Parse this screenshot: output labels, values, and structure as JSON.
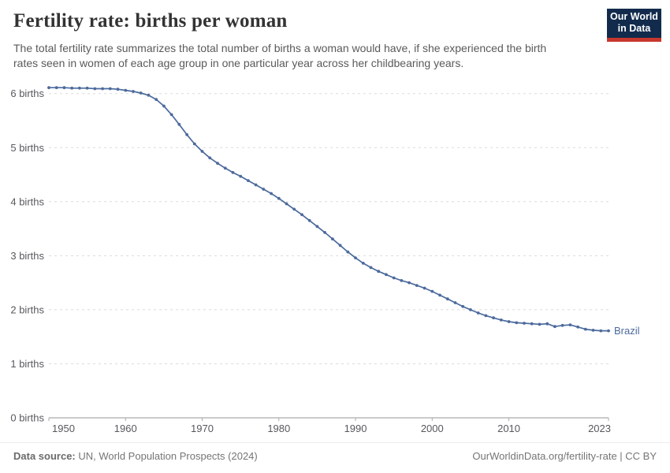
{
  "header": {
    "title": "Fertility rate: births per woman",
    "subtitle_line1": "The total fertility rate summarizes the total number of births a woman would have, if she experienced the birth",
    "subtitle_line2": "rates seen in women of each age group in one particular year across her childbearing years."
  },
  "logo": {
    "line1": "Our World",
    "line2": "in Data",
    "bg_color": "#122B4D",
    "accent_color": "#C8372D",
    "text_color": "#FFFFFF"
  },
  "chart_data": {
    "type": "line",
    "title": "Fertility rate: births per woman",
    "x": [
      1950,
      1951,
      1952,
      1953,
      1954,
      1955,
      1956,
      1957,
      1958,
      1959,
      1960,
      1961,
      1962,
      1963,
      1964,
      1965,
      1966,
      1967,
      1968,
      1969,
      1970,
      1971,
      1972,
      1973,
      1974,
      1975,
      1976,
      1977,
      1978,
      1979,
      1980,
      1981,
      1982,
      1983,
      1984,
      1985,
      1986,
      1987,
      1988,
      1989,
      1990,
      1991,
      1992,
      1993,
      1994,
      1995,
      1996,
      1997,
      1998,
      1999,
      2000,
      2001,
      2002,
      2003,
      2004,
      2005,
      2006,
      2007,
      2008,
      2009,
      2010,
      2011,
      2012,
      2013,
      2014,
      2015,
      2016,
      2017,
      2018,
      2019,
      2020,
      2021,
      2022,
      2023
    ],
    "series": [
      {
        "name": "Brazil",
        "color": "#4C6A9C",
        "values": [
          6.11,
          6.11,
          6.11,
          6.1,
          6.1,
          6.1,
          6.09,
          6.09,
          6.09,
          6.08,
          6.06,
          6.04,
          6.01,
          5.97,
          5.89,
          5.77,
          5.61,
          5.43,
          5.24,
          5.07,
          4.93,
          4.81,
          4.71,
          4.62,
          4.54,
          4.47,
          4.39,
          4.31,
          4.23,
          4.15,
          4.06,
          3.96,
          3.86,
          3.76,
          3.65,
          3.54,
          3.43,
          3.31,
          3.19,
          3.07,
          2.96,
          2.86,
          2.78,
          2.71,
          2.65,
          2.59,
          2.54,
          2.5,
          2.45,
          2.4,
          2.34,
          2.27,
          2.2,
          2.13,
          2.06,
          2.0,
          1.94,
          1.89,
          1.85,
          1.81,
          1.78,
          1.76,
          1.75,
          1.74,
          1.73,
          1.74,
          1.69,
          1.71,
          1.72,
          1.68,
          1.64,
          1.62,
          1.61,
          1.61
        ]
      }
    ],
    "xlabel": "",
    "ylabel": "births",
    "xlim": [
      1950,
      2023
    ],
    "ylim": [
      0,
      6.3
    ],
    "x_ticks": [
      1950,
      1960,
      1970,
      1980,
      1990,
      2000,
      2010,
      2023
    ],
    "y_ticks": [
      {
        "value": 0,
        "label": "0 births"
      },
      {
        "value": 1,
        "label": "1 births"
      },
      {
        "value": 2,
        "label": "2 births"
      },
      {
        "value": 3,
        "label": "3 births"
      },
      {
        "value": 4,
        "label": "4 births"
      },
      {
        "value": 5,
        "label": "5 births"
      },
      {
        "value": 6,
        "label": "6 births"
      }
    ],
    "grid": "horizontal-dashed",
    "markers": true,
    "legend_position": "end-of-line-label"
  },
  "colors": {
    "line": "#4C6A9C",
    "grid": "#DBDBDB",
    "axis": "#969696",
    "tick_text": "#58585E",
    "title": "#333333",
    "subtitle": "#5A5A5A",
    "footer_text": "#757575"
  },
  "footer": {
    "source_label": "Data source:",
    "source_text": " UN, World Population Prospects (2024)",
    "link_text": "OurWorldinData.org/fertility-rate | CC BY"
  }
}
